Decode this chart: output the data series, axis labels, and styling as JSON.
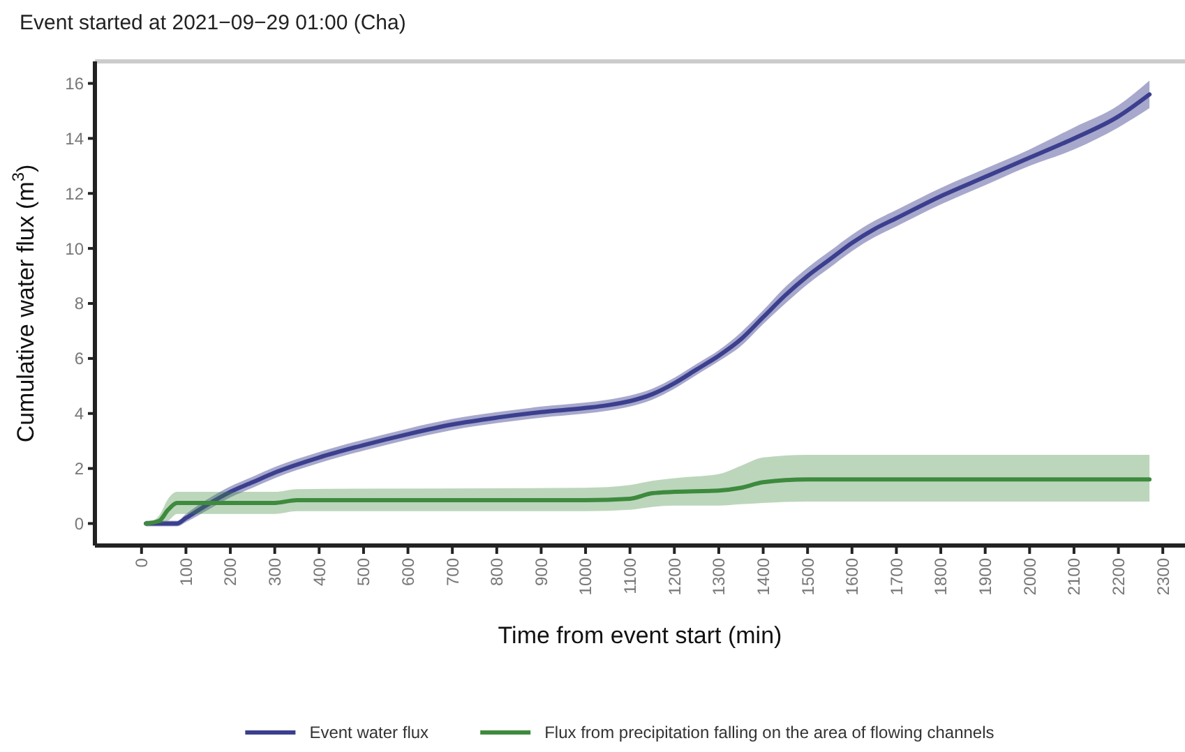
{
  "chart_data": {
    "type": "line",
    "title": "Event started at 2021−09−29 01:00 (Cha)",
    "xlabel": "Time from event start (min)",
    "ylabel": "Cumulative water flux (m$^{3}$)",
    "xlim": [
      -105,
      2350
    ],
    "ylim": [
      -0.8,
      16.8
    ],
    "xticks": [
      0,
      100,
      200,
      300,
      400,
      500,
      600,
      700,
      800,
      900,
      1000,
      1100,
      1200,
      1300,
      1400,
      1500,
      1600,
      1700,
      1800,
      1900,
      2000,
      2100,
      2200,
      2300
    ],
    "yticks": [
      0,
      2,
      4,
      6,
      8,
      10,
      12,
      14,
      16
    ],
    "grid": false,
    "legend": "bottom",
    "marker": "none",
    "line_style": "solid",
    "series": [
      {
        "name": "Event water flux",
        "color": "#3b3f8e",
        "x": [
          10,
          50,
          80,
          100,
          150,
          200,
          250,
          300,
          400,
          500,
          600,
          700,
          800,
          900,
          1000,
          1050,
          1100,
          1150,
          1200,
          1250,
          1300,
          1350,
          1400,
          1450,
          1500,
          1550,
          1600,
          1650,
          1700,
          1800,
          1900,
          2000,
          2100,
          2200,
          2270
        ],
        "values": [
          0,
          0,
          0,
          0.2,
          0.7,
          1.15,
          1.5,
          1.85,
          2.4,
          2.85,
          3.25,
          3.6,
          3.85,
          4.05,
          4.2,
          4.3,
          4.45,
          4.7,
          5.1,
          5.6,
          6.1,
          6.7,
          7.5,
          8.3,
          9,
          9.6,
          10.2,
          10.7,
          11.1,
          11.9,
          12.6,
          13.3,
          14,
          14.8,
          15.6
        ],
        "lower": [
          -0.1,
          -0.1,
          -0.1,
          0.05,
          0.5,
          0.95,
          1.3,
          1.65,
          2.2,
          2.65,
          3.05,
          3.4,
          3.65,
          3.85,
          4,
          4.1,
          4.25,
          4.5,
          4.9,
          5.4,
          5.9,
          6.45,
          7.25,
          8,
          8.7,
          9.3,
          9.9,
          10.4,
          10.8,
          11.6,
          12.3,
          13,
          13.6,
          14.4,
          15.1
        ],
        "upper": [
          0.1,
          0.1,
          0.1,
          0.35,
          0.9,
          1.35,
          1.7,
          2.05,
          2.6,
          3.05,
          3.45,
          3.8,
          4.05,
          4.25,
          4.4,
          4.5,
          4.65,
          4.9,
          5.3,
          5.8,
          6.3,
          6.95,
          7.75,
          8.6,
          9.3,
          9.9,
          10.5,
          11,
          11.4,
          12.2,
          12.9,
          13.6,
          14.4,
          15.2,
          16.1
        ]
      },
      {
        "name": "Flux from precipitation falling on the area of flowing channels",
        "color": "#3e8a3e",
        "x": [
          10,
          40,
          60,
          80,
          300,
          350,
          1000,
          1100,
          1150,
          1200,
          1300,
          1350,
          1400,
          1500,
          2270
        ],
        "values": [
          0,
          0.1,
          0.5,
          0.75,
          0.75,
          0.85,
          0.85,
          0.9,
          1.1,
          1.15,
          1.2,
          1.3,
          1.5,
          1.6,
          1.6
        ],
        "lower": [
          0,
          0,
          0.1,
          0.35,
          0.35,
          0.45,
          0.45,
          0.5,
          0.6,
          0.65,
          0.65,
          0.7,
          0.75,
          0.8,
          0.8
        ],
        "upper": [
          0,
          0.3,
          0.9,
          1.15,
          1.15,
          1.25,
          1.3,
          1.4,
          1.55,
          1.65,
          1.8,
          2.1,
          2.4,
          2.5,
          2.5
        ]
      }
    ]
  }
}
